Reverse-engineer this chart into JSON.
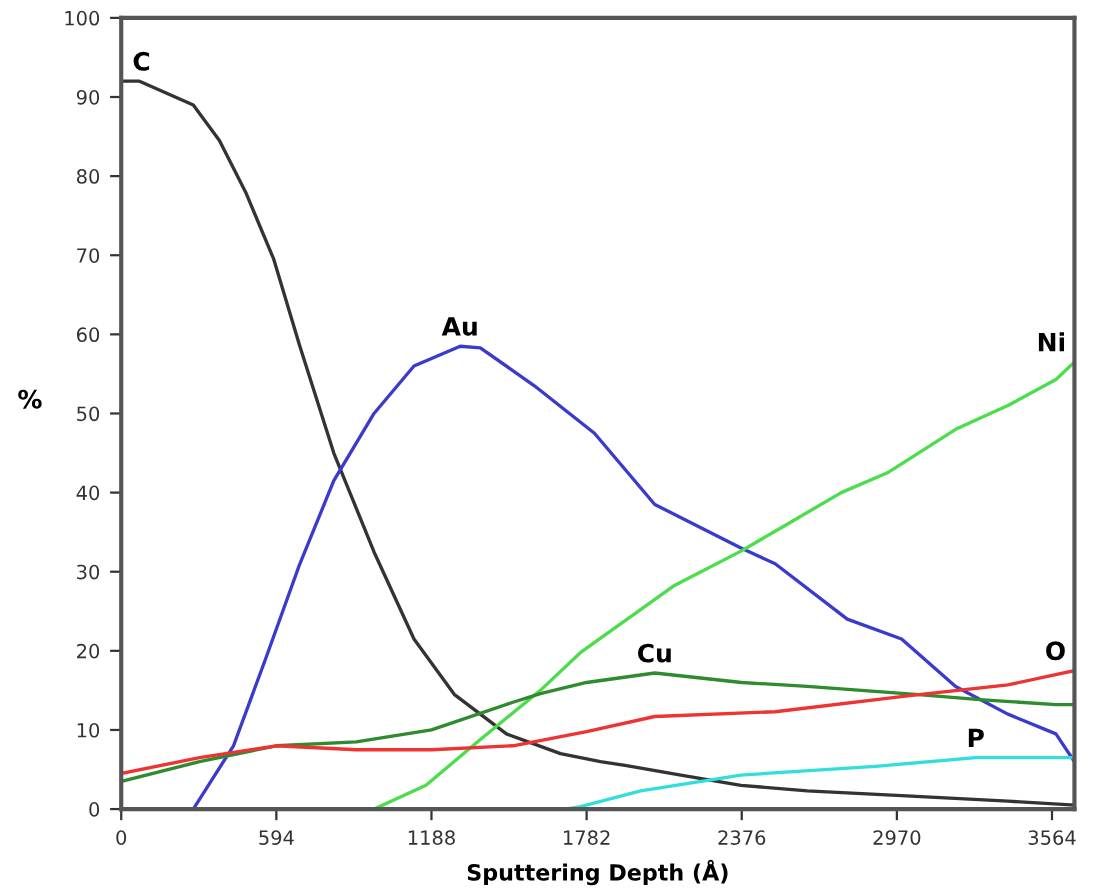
{
  "chart_data": {
    "type": "line",
    "xlabel": "Sputtering Depth (Å)",
    "ylabel": "%",
    "xlim": [
      0,
      3650
    ],
    "ylim": [
      0,
      100
    ],
    "xticks": [
      0,
      594,
      1188,
      1782,
      2376,
      2970,
      3564
    ],
    "yticks": [
      0,
      10,
      20,
      30,
      40,
      50,
      60,
      70,
      80,
      90,
      100
    ],
    "grid": false,
    "legend": false,
    "marker": "none",
    "line_style": "solid",
    "series": [
      {
        "name": "C",
        "color": "#333333",
        "x": [
          0,
          70,
          276,
          376,
          476,
          584,
          684,
          814,
          968,
          1121,
          1275,
          1475,
          1682,
          1835,
          1935,
          2143,
          2373,
          2627,
          2988,
          3395,
          3650
        ],
        "values": [
          92,
          92,
          89,
          84.5,
          78,
          69.5,
          58.5,
          45,
          32.5,
          21.5,
          14.5,
          9.5,
          7,
          6,
          5.5,
          4.3,
          3,
          2.3,
          1.7,
          1,
          0.5
        ]
      },
      {
        "name": "Au",
        "color": "#3a3acc",
        "x": [
          276,
          430,
          553,
          684,
          814,
          968,
          1121,
          1298,
          1375,
          1582,
          1812,
          2043,
          2373,
          2504,
          2780,
          2988,
          3195,
          3395,
          3579,
          3650
        ],
        "values": [
          0,
          8,
          19,
          31,
          41.5,
          50,
          56,
          58.5,
          58.3,
          53.5,
          47.5,
          38.5,
          33,
          31,
          24,
          21.5,
          15.5,
          12,
          9.5,
          6
        ]
      },
      {
        "name": "Ni",
        "color": "#4cdd4c",
        "x": [
          968,
          1167,
          1375,
          1605,
          1759,
          2120,
          2373,
          2550,
          2757,
          2934,
          3195,
          3395,
          3579,
          3650
        ],
        "values": [
          0,
          3,
          8.8,
          15,
          19.8,
          28.3,
          32.6,
          36,
          40,
          42.5,
          48,
          51,
          54.3,
          56.5
        ]
      },
      {
        "name": "Cu",
        "color": "#2e8b2e",
        "x": [
          0,
          300,
          594,
          900,
          1188,
          1500,
          1605,
          1782,
          2043,
          2376,
          2627,
          3041,
          3300,
          3579,
          3650
        ],
        "values": [
          3.5,
          6,
          8,
          8.5,
          10,
          13.5,
          14.6,
          16,
          17.2,
          16,
          15.5,
          14.5,
          13.8,
          13.2,
          13.2
        ]
      },
      {
        "name": "O",
        "color": "#ee3333",
        "x": [
          0,
          300,
          594,
          900,
          1188,
          1500,
          1782,
          2043,
          2504,
          3011,
          3395,
          3650
        ],
        "values": [
          4.5,
          6.5,
          8,
          7.5,
          7.5,
          8,
          9.8,
          11.7,
          12.3,
          14.3,
          15.7,
          17.5
        ]
      },
      {
        "name": "P",
        "color": "#33dddd",
        "x": [
          1700,
          1759,
          1989,
          2373,
          2888,
          3272,
          3650
        ],
        "values": [
          0,
          0.3,
          2.3,
          4.3,
          5.4,
          6.5,
          6.5
        ]
      }
    ]
  }
}
